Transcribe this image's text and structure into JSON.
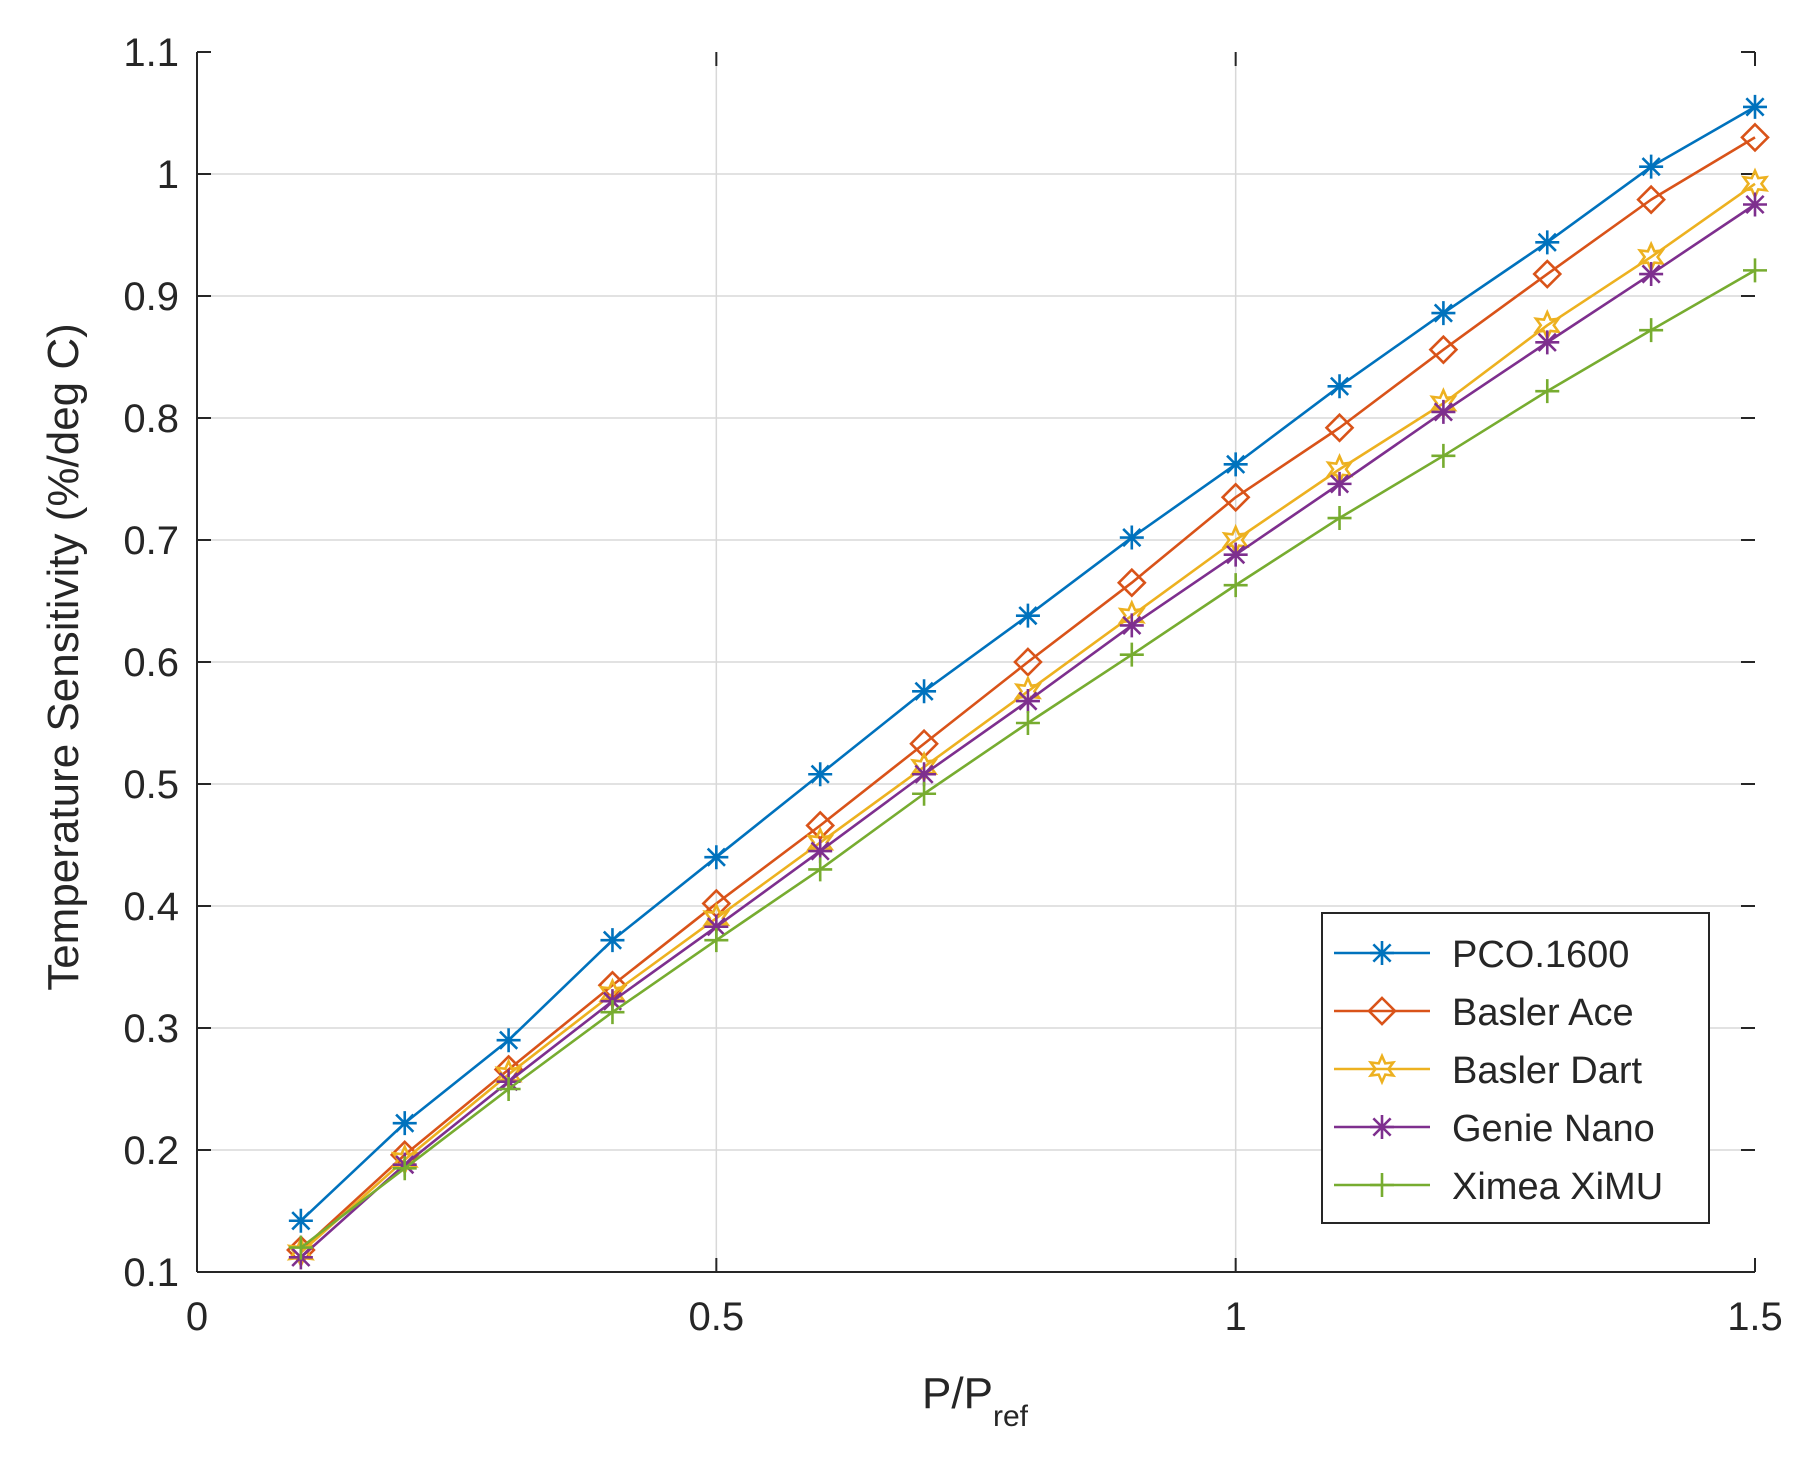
{
  "chart_data": {
    "type": "line",
    "title": "",
    "xlabel": "P/P",
    "xlabel_sub": "ref",
    "ylabel": "Temperature Sensitivity (%/deg C)",
    "xlim": [
      0,
      1.5
    ],
    "ylim": [
      0.1,
      1.1
    ],
    "xticks": [
      0,
      0.5,
      1,
      1.5
    ],
    "xtick_labels": [
      "0",
      "0.5",
      "1",
      "1.5"
    ],
    "yticks": [
      0.1,
      0.2,
      0.3,
      0.4,
      0.5,
      0.6,
      0.7,
      0.8,
      0.9,
      1,
      1.1
    ],
    "ytick_labels": [
      "0.1",
      "0.2",
      "0.3",
      "0.4",
      "0.5",
      "0.6",
      "0.7",
      "0.8",
      "0.9",
      "1",
      "1.1"
    ],
    "grid": true,
    "legend_position": "bottom-right",
    "x": [
      0.1,
      0.2,
      0.3,
      0.4,
      0.5,
      0.6,
      0.7,
      0.8,
      0.9,
      1.0,
      1.1,
      1.2,
      1.3,
      1.4,
      1.5
    ],
    "series": [
      {
        "name": "PCO.1600",
        "color": "#0072BD",
        "marker": "asterisk",
        "values": [
          0.142,
          0.222,
          0.29,
          0.372,
          0.44,
          0.508,
          0.576,
          0.638,
          0.702,
          0.762,
          0.826,
          0.886,
          0.944,
          1.006,
          1.055
        ]
      },
      {
        "name": "Basler Ace",
        "color": "#D95319",
        "marker": "diamond",
        "values": [
          0.118,
          0.196,
          0.266,
          0.335,
          0.402,
          0.466,
          0.533,
          0.6,
          0.665,
          0.735,
          0.792,
          0.856,
          0.918,
          0.979,
          1.03
        ]
      },
      {
        "name": "Basler Dart",
        "color": "#EDB120",
        "marker": "hexagram",
        "values": [
          0.116,
          0.192,
          0.262,
          0.328,
          0.39,
          0.452,
          0.514,
          0.576,
          0.638,
          0.7,
          0.758,
          0.812,
          0.876,
          0.932,
          0.992
        ]
      },
      {
        "name": "Genie Nano",
        "color": "#7E2F8E",
        "marker": "asterisk",
        "values": [
          0.112,
          0.188,
          0.256,
          0.322,
          0.383,
          0.445,
          0.508,
          0.568,
          0.63,
          0.688,
          0.746,
          0.805,
          0.862,
          0.918,
          0.975
        ]
      },
      {
        "name": "Ximea XiMU",
        "color": "#77AC30",
        "marker": "plus",
        "values": [
          0.12,
          0.185,
          0.25,
          0.313,
          0.372,
          0.43,
          0.492,
          0.55,
          0.606,
          0.663,
          0.718,
          0.769,
          0.822,
          0.872,
          0.921
        ]
      }
    ]
  }
}
